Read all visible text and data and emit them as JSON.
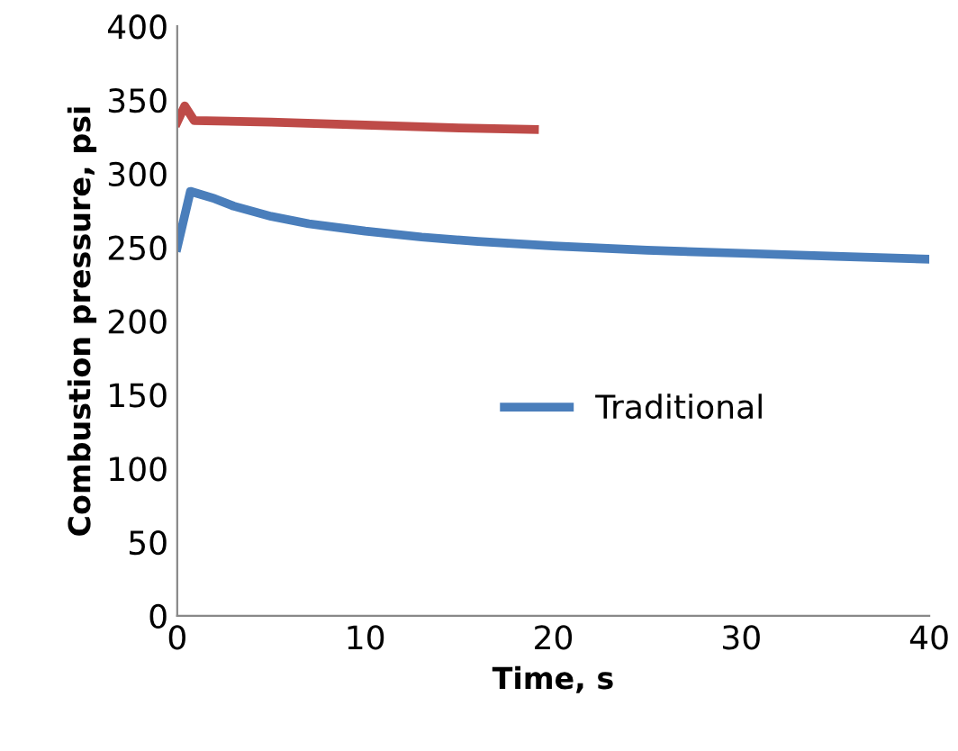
{
  "chart_data": {
    "type": "line",
    "xlabel": "Time, s",
    "ylabel": "Combustion pressure, psi",
    "xlim": [
      0,
      40
    ],
    "ylim": [
      0,
      400
    ],
    "xticks": [
      0,
      10,
      20,
      30,
      40
    ],
    "yticks": [
      0,
      50,
      100,
      150,
      200,
      250,
      300,
      350,
      400
    ],
    "grid": false,
    "legend": "right",
    "marker": "none",
    "line_style": "solid",
    "series": [
      {
        "name": "Traditional",
        "color": "#4a7ebb",
        "x": [
          0,
          0.7,
          2,
          3,
          5,
          7,
          10,
          13,
          16,
          20,
          25,
          30,
          35,
          40
        ],
        "values": [
          250,
          288,
          283,
          278,
          271,
          266,
          261,
          257,
          254,
          251,
          248,
          246,
          244,
          242
        ]
      },
      {
        "color": "#be4b48",
        "x": [
          0,
          0.4,
          0.9,
          5,
          10,
          15,
          19
        ],
        "values": [
          335,
          346,
          336,
          335,
          333,
          331,
          330
        ]
      }
    ]
  }
}
